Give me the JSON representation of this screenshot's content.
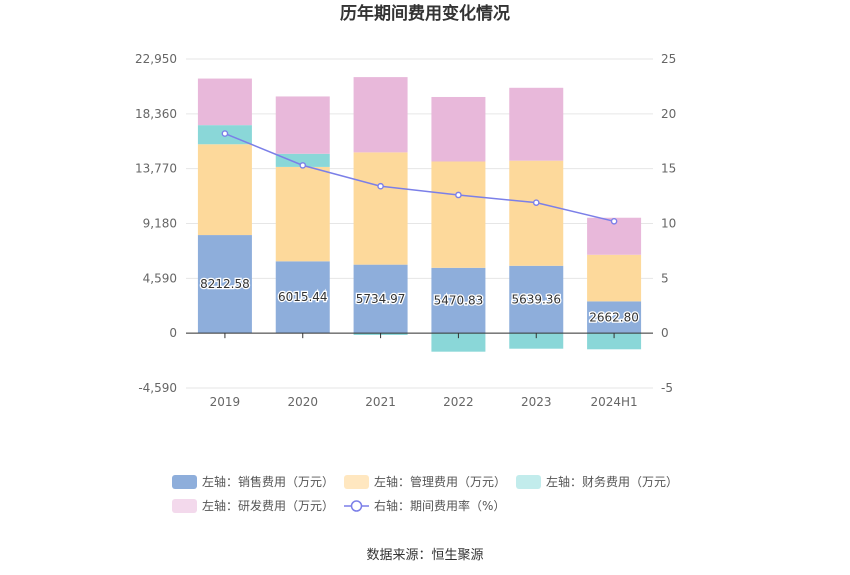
{
  "chart_data": {
    "type": "bar",
    "title": "历年期间费用变化情况",
    "categories": [
      "2019",
      "2020",
      "2021",
      "2022",
      "2023",
      "2024H1"
    ],
    "left_axis": {
      "ticks": [
        "22,950",
        "18,360",
        "13,770",
        "9,180",
        "4,590",
        "0",
        "-4,590"
      ],
      "ylim": [
        -4590,
        22950
      ]
    },
    "right_axis": {
      "ticks": [
        "25",
        "20",
        "15",
        "10",
        "5",
        "0",
        "-5"
      ],
      "ylim": [
        -5,
        25
      ]
    },
    "series": [
      {
        "name": "左轴：销售费用（万元）",
        "type": "bar",
        "axis": "left",
        "color": "#8eaedb",
        "values": [
          8212.58,
          6015.44,
          5734.97,
          5470.83,
          5639.36,
          2662.8
        ],
        "labels": [
          "8212.58",
          "6015.44",
          "5734.97",
          "5470.83",
          "5639.36",
          "2662.80"
        ]
      },
      {
        "name": "左轴：管理费用（万元）",
        "type": "bar",
        "axis": "left",
        "color": "#fdd99b",
        "values": [
          7600,
          7900,
          9400,
          8900,
          8800,
          3900
        ]
      },
      {
        "name": "左轴：财务费用（万元）",
        "type": "bar",
        "axis": "left",
        "color": "#8ad7d8",
        "values": [
          1600,
          1100,
          -150,
          -1550,
          -1300,
          -1350
        ]
      },
      {
        "name": "左轴：研发费用（万元）",
        "type": "bar",
        "axis": "left",
        "color": "#e8b8da",
        "values": [
          3900,
          4800,
          6300,
          5400,
          6100,
          3100
        ]
      },
      {
        "name": "右轴：期间费用率（%）",
        "type": "line",
        "axis": "right",
        "color": "#7b7fe8",
        "values": [
          18.2,
          15.3,
          13.4,
          12.6,
          11.9,
          10.2
        ]
      }
    ],
    "legend_placement": "bottom",
    "grid": true
  },
  "source": "数据来源：恒生聚源"
}
